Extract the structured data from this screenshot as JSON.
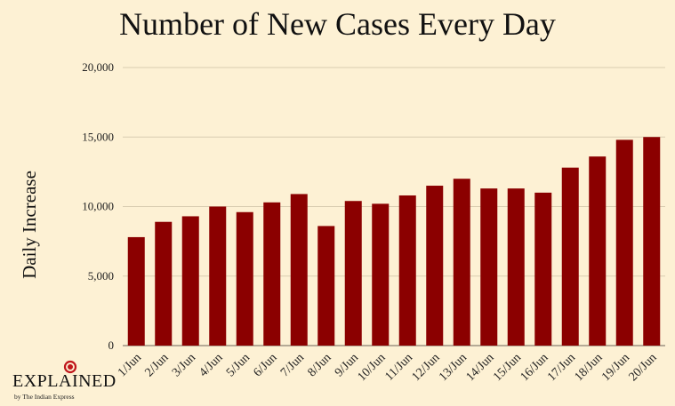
{
  "chart_data": {
    "type": "bar",
    "title": "Number of New Cases Every Day",
    "xlabel": "",
    "ylabel": "Daily Increase",
    "categories": [
      "1/Jun",
      "2/Jun",
      "3/Jun",
      "4/Jun",
      "5/Jun",
      "6/Jun",
      "7/Jun",
      "8/Jun",
      "9/Jun",
      "10/Jun",
      "11/Jun",
      "12/Jun",
      "13/Jun",
      "14/Jun",
      "15/Jun",
      "16/Jun",
      "17/Jun",
      "18/Jun",
      "19/Jun",
      "20/Jun"
    ],
    "values": [
      7800,
      8900,
      9300,
      10000,
      9600,
      10300,
      10900,
      8600,
      10400,
      10200,
      10800,
      11500,
      12000,
      11300,
      11300,
      11000,
      12800,
      13600,
      14800,
      15000
    ],
    "ylim": [
      0,
      20000
    ],
    "yticks": [
      0,
      5000,
      10000,
      15000,
      20000
    ],
    "ytick_labels": [
      "0",
      "5,000",
      "10,000",
      "15,000",
      "20,000"
    ],
    "grid": "horizontal",
    "bar_color": "#8b0000",
    "grid_color": "#d9cdb1"
  },
  "logo": {
    "word": "EXPLAINED",
    "sub": "by The Indian Express"
  },
  "colors": {
    "background": "#fdf1d4",
    "accent_red": "#c0161b"
  }
}
